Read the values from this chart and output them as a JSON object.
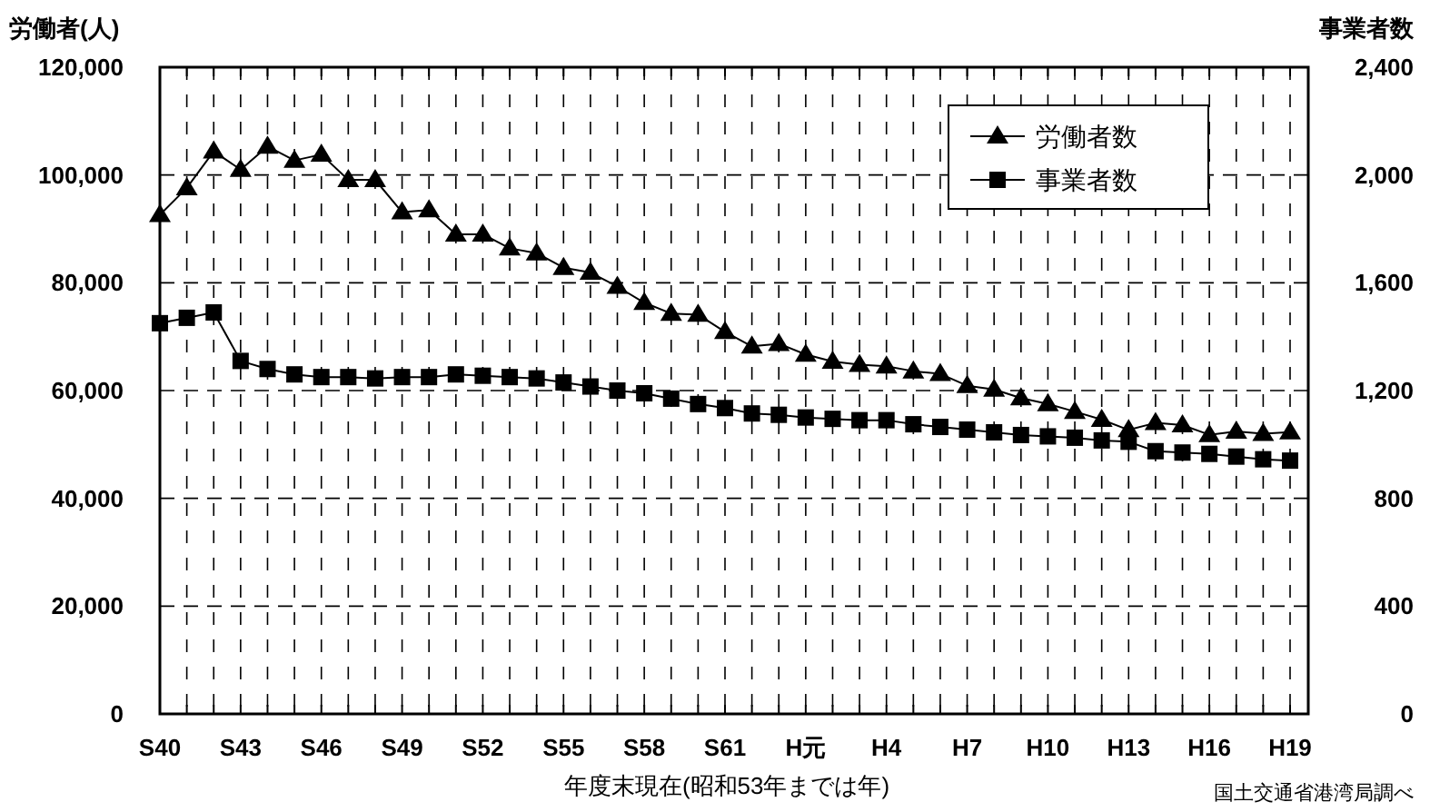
{
  "chart_data": {
    "type": "line",
    "xlabel": "年度末現在(昭和53年までは年)",
    "ylabel": "労働者(人)",
    "y2label": "事業者数",
    "annotations": [
      "国土交通省港湾局調べ"
    ],
    "categories": [
      "S40",
      null,
      null,
      "S43",
      null,
      null,
      "S46",
      null,
      null,
      "S49",
      null,
      null,
      "S52",
      null,
      null,
      "S55",
      null,
      null,
      "S58",
      null,
      null,
      "S61",
      null,
      null,
      "H元",
      null,
      null,
      "H4",
      null,
      null,
      "H7",
      null,
      null,
      "H10",
      null,
      null,
      "H13",
      null,
      null,
      "H16",
      null,
      null,
      "H19"
    ],
    "series": [
      {
        "name": "労働者数",
        "color": "#000000",
        "marker": "triangle",
        "values": [
          92600,
          97600,
          104400,
          101000,
          105300,
          102700,
          103800,
          99100,
          99100,
          93100,
          93500,
          89000,
          89000,
          86400,
          85500,
          82800,
          81900,
          79300,
          76300,
          74300,
          74100,
          70900,
          68200,
          68700,
          66700,
          65400,
          64800,
          64500,
          63600,
          63100,
          60900,
          60200,
          58600,
          57500,
          56100,
          54600,
          52700,
          54000,
          53600,
          51800,
          52400,
          52000,
          52300
        ]
      },
      {
        "name": "事業者数",
        "color": "#000000",
        "marker": "square",
        "axis": "y2",
        "values": [
          1450,
          1470,
          1490,
          1310,
          1280,
          1260,
          1250,
          1250,
          1245,
          1250,
          1250,
          1260,
          1255,
          1250,
          1245,
          1230,
          1215,
          1200,
          1190,
          1170,
          1150,
          1135,
          1115,
          1110,
          1100,
          1095,
          1090,
          1090,
          1075,
          1065,
          1055,
          1045,
          1035,
          1030,
          1025,
          1015,
          1010,
          975,
          970,
          965,
          955,
          945,
          940
        ]
      }
    ],
    "ylim": [
      0,
      120000
    ],
    "yticks": [
      {
        "value": 0,
        "label": "0"
      },
      {
        "value": 20000,
        "label": "20,000"
      },
      {
        "value": 40000,
        "label": "40,000"
      },
      {
        "value": 60000,
        "label": "60,000"
      },
      {
        "value": 80000,
        "label": "80,000"
      },
      {
        "value": 100000,
        "label": "100,000"
      },
      {
        "value": 120000,
        "label": "120,000"
      }
    ],
    "y2lim": [
      0,
      2400
    ],
    "y2ticks": [
      {
        "value": 0,
        "label": "0"
      },
      {
        "value": 400,
        "label": "400"
      },
      {
        "value": 800,
        "label": "800"
      },
      {
        "value": 1200,
        "label": "1,200"
      },
      {
        "value": 1600,
        "label": "1,600"
      },
      {
        "value": 2000,
        "label": "2,000"
      },
      {
        "value": 2400,
        "label": "2,400"
      }
    ],
    "grid": true,
    "legend": "top right",
    "line_style": "solid"
  }
}
